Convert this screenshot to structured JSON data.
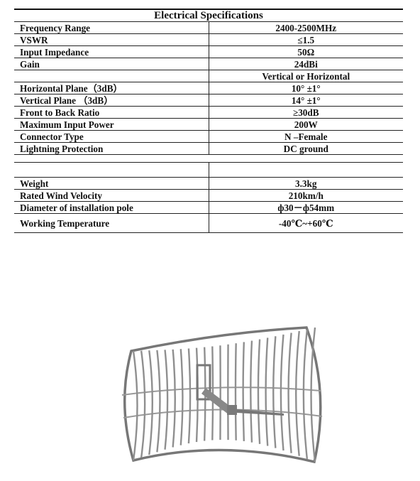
{
  "spec": {
    "title": "Electrical Specifications",
    "rows_top": [
      {
        "label": "Frequency Range",
        "value": "2400-2500MHz"
      },
      {
        "label": "VSWR",
        "value": "≤1.5"
      },
      {
        "label": "Input Impedance",
        "value": "50Ω"
      },
      {
        "label": "Gain",
        "value": "24dBi"
      },
      {
        "label": "",
        "value": "Vertical or Horizontal"
      },
      {
        "label": "Horizontal Plane（3dB）",
        "value": "10° ±1°"
      },
      {
        "label": "Vertical Plane （3dB）",
        "value": "14° ±1°"
      },
      {
        "label": "Front to Back Ratio",
        "value": "≥30dB"
      },
      {
        "label": "Maximum Input Power",
        "value": "200W"
      },
      {
        "label": "Connector Type",
        "value": "N –Female"
      },
      {
        "label": "Lightning Protection",
        "value": "DC ground"
      }
    ],
    "rows_bottom": [
      {
        "label": "Weight",
        "value": "3.3kg"
      },
      {
        "label": "Rated Wind Velocity",
        "value": "210km/h"
      },
      {
        "label": "Diameter of installation pole",
        "value": "ф30－ф54mm"
      },
      {
        "label": "Working Temperature",
        "value": "-40℃~+60℃"
      }
    ]
  }
}
